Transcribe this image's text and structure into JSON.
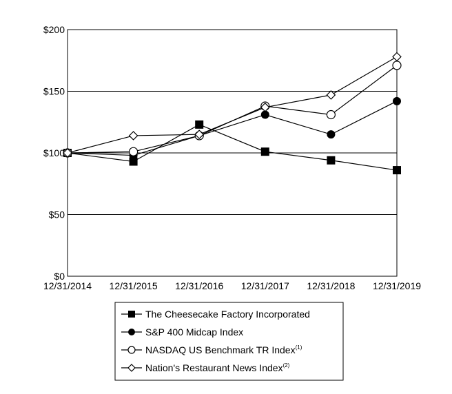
{
  "chart_data": {
    "type": "line",
    "title": "",
    "xlabel": "",
    "ylabel": "",
    "categories": [
      "12/31/2014",
      "12/31/2015",
      "12/31/2016",
      "12/31/2017",
      "12/31/2018",
      "12/31/2019"
    ],
    "y_ticks": [
      "$0",
      "$50",
      "$100",
      "$150",
      "$200"
    ],
    "ylim": [
      0,
      200
    ],
    "grid": "horizontal",
    "legend_position": "bottom",
    "series": [
      {
        "name": "The Cheesecake Factory Incorporated",
        "marker": "filled-square",
        "values": [
          100,
          93,
          123,
          101,
          94,
          86
        ]
      },
      {
        "name": "S&P 400 Midcap Index",
        "marker": "filled-circle",
        "values": [
          100,
          98,
          114,
          131,
          115,
          142
        ]
      },
      {
        "name": "NASDAQ US Benchmark TR Index",
        "sup": "(1)",
        "marker": "open-circle",
        "values": [
          100,
          101,
          114,
          138,
          131,
          171
        ]
      },
      {
        "name": "Nation's Restaurant News Index",
        "sup": "(2)",
        "marker": "open-diamond",
        "values": [
          100,
          114,
          115,
          137,
          147,
          178
        ]
      }
    ]
  }
}
